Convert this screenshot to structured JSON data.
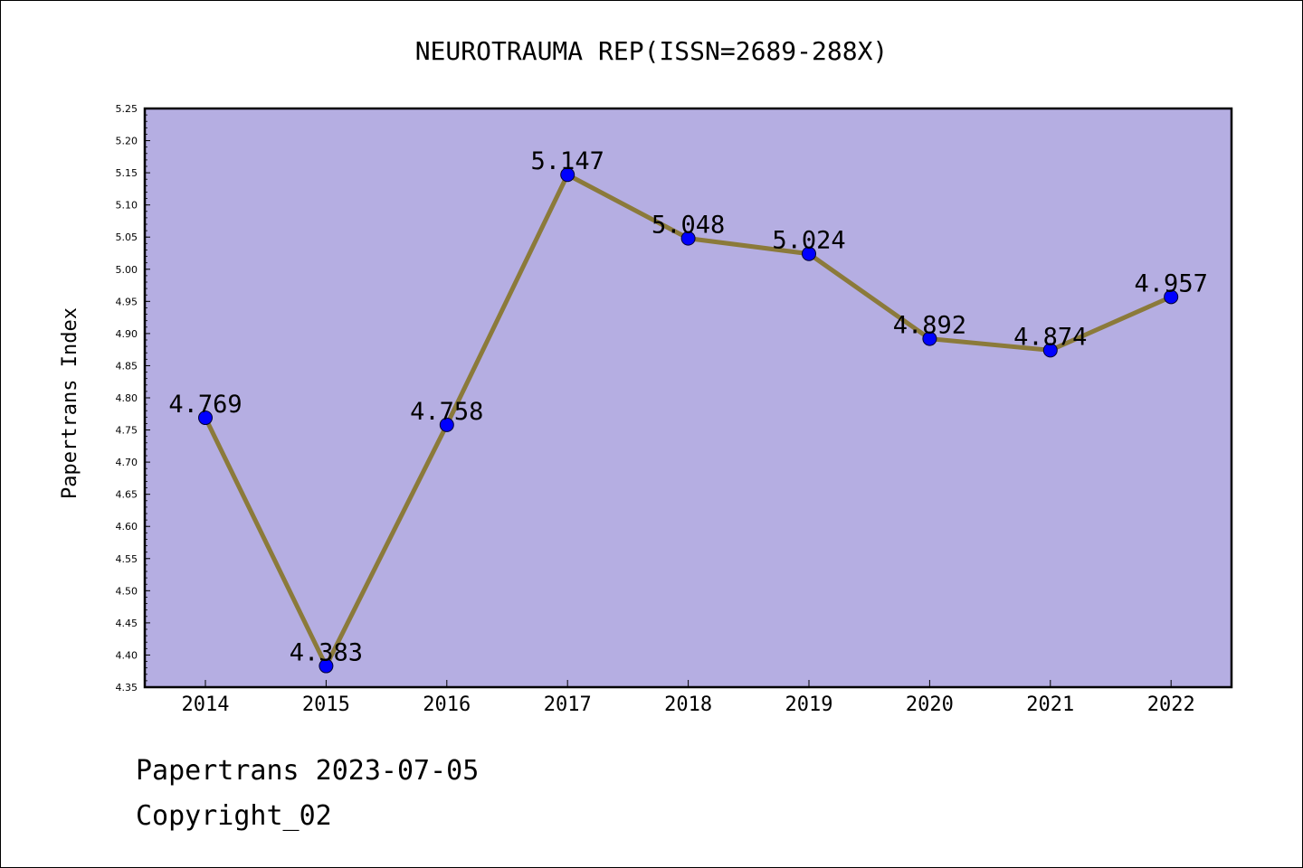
{
  "chart_data": {
    "type": "line",
    "title": "NEUROTRAUMA REP(ISSN=2689-288X)",
    "xlabel": "",
    "ylabel": "Papertrans Index",
    "categories": [
      "2014",
      "2015",
      "2016",
      "2017",
      "2018",
      "2019",
      "2020",
      "2021",
      "2022"
    ],
    "series": [
      {
        "values": [
          4.769,
          4.383,
          4.758,
          5.147,
          5.048,
          5.024,
          4.892,
          4.874,
          4.957
        ],
        "data_labels": [
          "4.769",
          "4.383",
          "4.758",
          "5.147",
          "5.048",
          "5.024",
          "4.892",
          "4.874",
          "4.957"
        ]
      }
    ],
    "ylim": [
      4.35,
      5.25
    ],
    "yticks": [
      "4.35",
      "4.40",
      "4.45",
      "4.50",
      "4.55",
      "4.60",
      "4.65",
      "4.70",
      "4.75",
      "4.80",
      "4.85",
      "4.90",
      "4.95",
      "5.00",
      "5.05",
      "5.10",
      "5.15",
      "5.20",
      "5.25"
    ],
    "grid": false,
    "legend": "none",
    "colors": {
      "plot_background": "#b5aee2",
      "line": "#8b7a3a",
      "marker": "#0000ff",
      "axis": "#000000"
    }
  },
  "footer": {
    "date_line": "Papertrans 2023-07-05",
    "copyright_line": "Copyright_02"
  }
}
